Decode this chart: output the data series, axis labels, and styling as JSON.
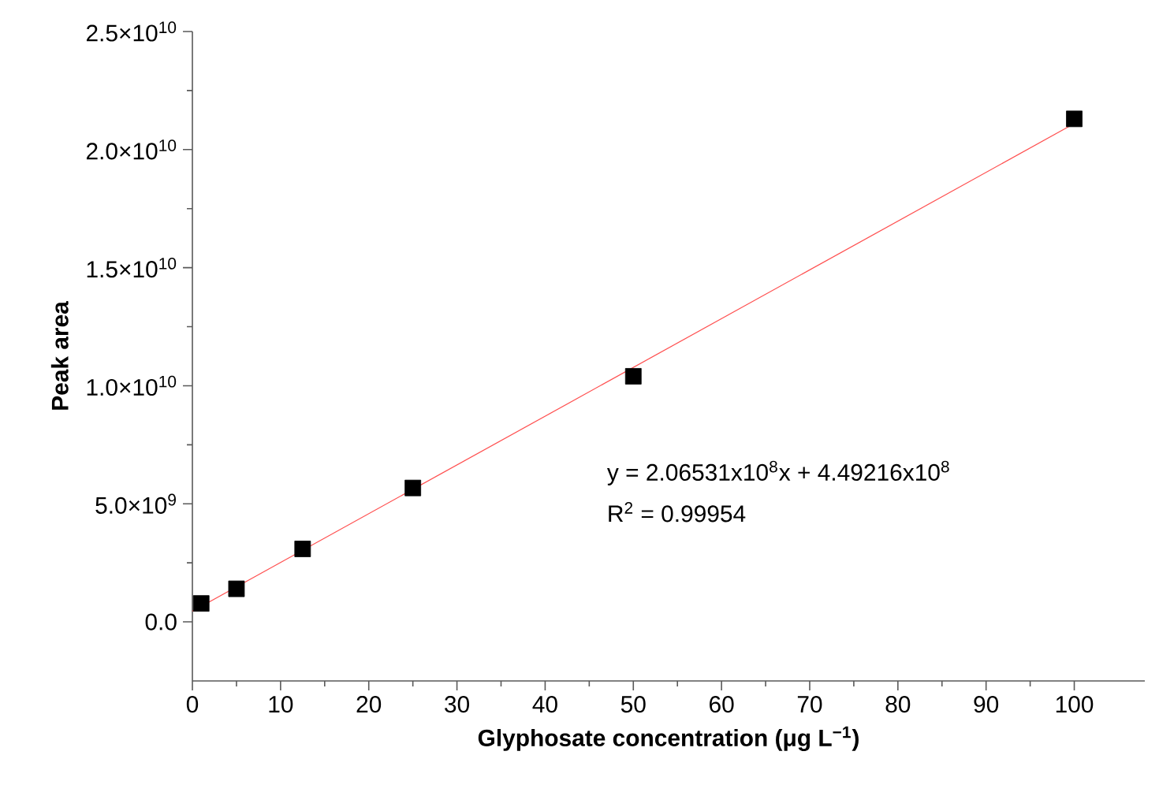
{
  "chart_data": {
    "type": "scatter",
    "xlabel": "Glyphosate concentration (μg L$^{−1}$)",
    "ylabel": "Peak area",
    "xlim": [
      0,
      108
    ],
    "ylim": [
      -2500000000,
      25000000000
    ],
    "xticks": [
      0,
      10,
      20,
      30,
      40,
      50,
      60,
      70,
      80,
      90,
      100
    ],
    "yticks": [
      {
        "value": 0,
        "label": "0.0"
      },
      {
        "value": 5000000000,
        "label": "5.0×10$^{9}$"
      },
      {
        "value": 10000000000,
        "label": "1.0×10$^{10}$"
      },
      {
        "value": 15000000000,
        "label": "1.5×10$^{10}$"
      },
      {
        "value": 20000000000,
        "label": "2.0×10$^{10}$"
      },
      {
        "value": 25000000000,
        "label": "2.5×10$^{10}$"
      }
    ],
    "marker": "square",
    "series": [
      {
        "color": "#000000",
        "x": [
          1,
          5,
          12.5,
          25,
          50,
          100
        ],
        "values": [
          780000000,
          1400000000,
          3090000000,
          5670000000,
          10400000000,
          21300000000
        ]
      },
      {
        "type": "line",
        "color": "#ff5050",
        "marker": "none",
        "x": [
          0,
          100
        ],
        "values": [
          450000000,
          21100000000
        ]
      }
    ],
    "annotations": [
      "y = 2.06531x10$^{8}$x + 4.49216x10$^{8}$",
      "R$^{2}$ = 0.99954"
    ]
  }
}
